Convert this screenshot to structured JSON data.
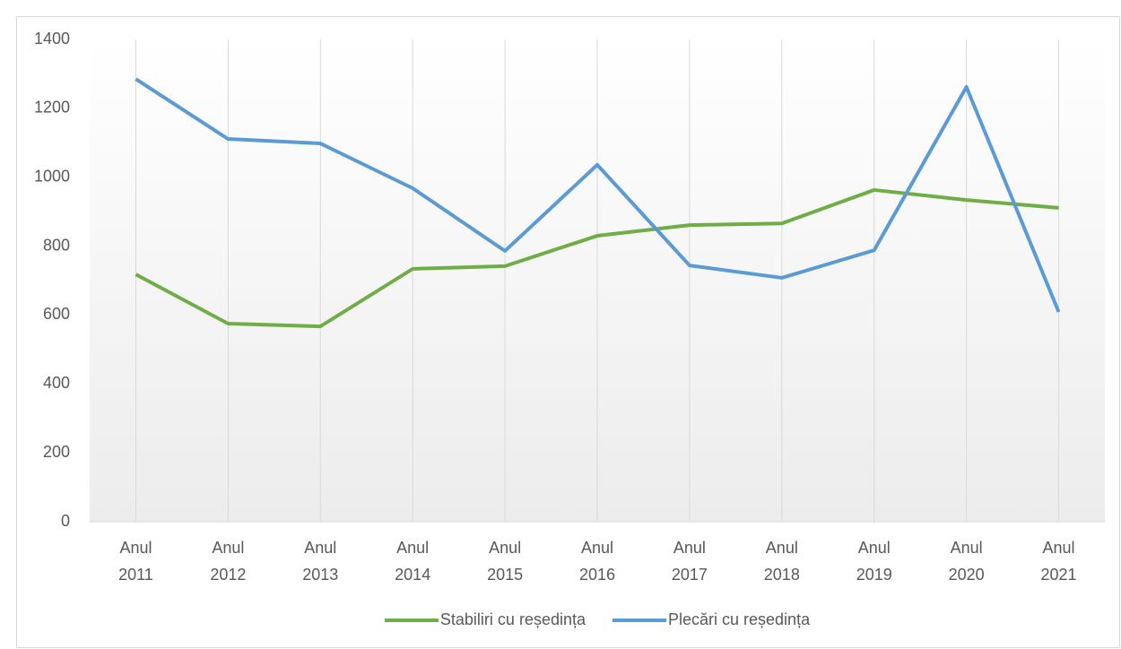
{
  "chart_data": {
    "type": "line",
    "categories": [
      "Anul 2011",
      "Anul 2012",
      "Anul 2013",
      "Anul 2014",
      "Anul 2015",
      "Anul 2016",
      "Anul 2017",
      "Anul 2018",
      "Anul 2019",
      "Anul 2020",
      "Anul 2021"
    ],
    "series": [
      {
        "name": "Stabiliri cu reședința",
        "color": "#70ad47",
        "values": [
          718,
          575,
          567,
          734,
          742,
          830,
          861,
          866,
          963,
          934,
          911
        ]
      },
      {
        "name": "Plecări cu reședința",
        "color": "#5b9bd5",
        "values": [
          1285,
          1111,
          1098,
          968,
          786,
          1036,
          744,
          708,
          788,
          1262,
          609
        ]
      }
    ],
    "ylim": [
      0,
      1400
    ],
    "yticks": [
      0,
      200,
      400,
      600,
      800,
      1000,
      1200,
      1400
    ],
    "grid": true,
    "legend": "bottom"
  }
}
